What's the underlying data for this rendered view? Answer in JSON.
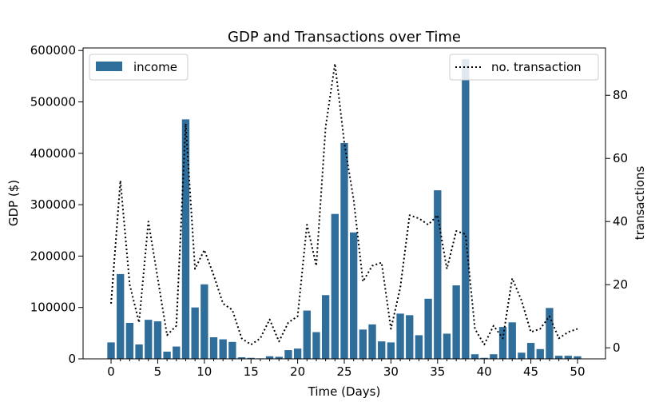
{
  "chart_data": {
    "type": "bar+line",
    "title": "GDP and Transactions over Time",
    "xlabel": "Time (Days)",
    "ylabel": "GDP ($)",
    "y2label": "transactions",
    "xlim": [
      -3,
      53
    ],
    "ylim": [
      0,
      605000
    ],
    "y2lim": [
      -3.5,
      95
    ],
    "x_ticks": [
      0,
      5,
      10,
      15,
      20,
      25,
      30,
      35,
      40,
      45,
      50
    ],
    "y_ticks": [
      0,
      100000,
      200000,
      300000,
      400000,
      500000,
      600000
    ],
    "y2_ticks": [
      0,
      20,
      40,
      60,
      80
    ],
    "bar_series": {
      "name": "income",
      "color": "#2f6e9b",
      "x": [
        0,
        1,
        2,
        3,
        4,
        5,
        6,
        7,
        8,
        9,
        10,
        11,
        12,
        13,
        14,
        15,
        16,
        17,
        18,
        19,
        20,
        21,
        22,
        23,
        24,
        25,
        26,
        27,
        28,
        29,
        30,
        31,
        32,
        33,
        34,
        35,
        36,
        37,
        38,
        39,
        40,
        41,
        42,
        43,
        44,
        45,
        46,
        47,
        48,
        49,
        50
      ],
      "values": [
        32000,
        165000,
        70000,
        28000,
        76000,
        73000,
        14000,
        24000,
        466000,
        100000,
        145000,
        42000,
        38000,
        33000,
        3000,
        2000,
        1000,
        5000,
        4000,
        17000,
        20000,
        94000,
        52000,
        124000,
        282000,
        420000,
        246000,
        57000,
        67000,
        34000,
        32000,
        88000,
        85000,
        46000,
        117000,
        328000,
        49000,
        143000,
        583000,
        9000,
        2000,
        9000,
        62000,
        71000,
        12000,
        31000,
        19000,
        99000,
        6000,
        6000,
        5000
      ]
    },
    "line_series": {
      "name": "no. transaction",
      "color": "#000000",
      "style": "dotted",
      "x": [
        0,
        1,
        2,
        3,
        4,
        5,
        6,
        7,
        8,
        9,
        10,
        11,
        12,
        13,
        14,
        15,
        16,
        17,
        18,
        19,
        20,
        21,
        22,
        23,
        24,
        25,
        26,
        27,
        28,
        29,
        30,
        31,
        32,
        33,
        34,
        35,
        36,
        37,
        38,
        39,
        40,
        41,
        42,
        43,
        44,
        45,
        46,
        47,
        48,
        49,
        50
      ],
      "values": [
        14,
        53,
        20,
        8,
        40,
        22,
        4,
        7,
        71,
        25,
        31,
        23,
        14,
        12,
        3,
        1,
        3,
        9,
        2,
        8,
        10,
        39,
        26,
        70,
        90,
        65,
        47,
        21,
        26,
        27,
        6,
        19,
        42,
        41,
        39,
        42,
        25,
        37,
        36,
        6,
        1,
        7,
        3,
        22,
        15,
        5,
        6,
        10,
        3,
        5,
        6
      ]
    },
    "legend": [
      {
        "label": "income",
        "placement": "top-left"
      },
      {
        "label": "no. transaction",
        "placement": "top-right"
      }
    ],
    "grid": false
  }
}
